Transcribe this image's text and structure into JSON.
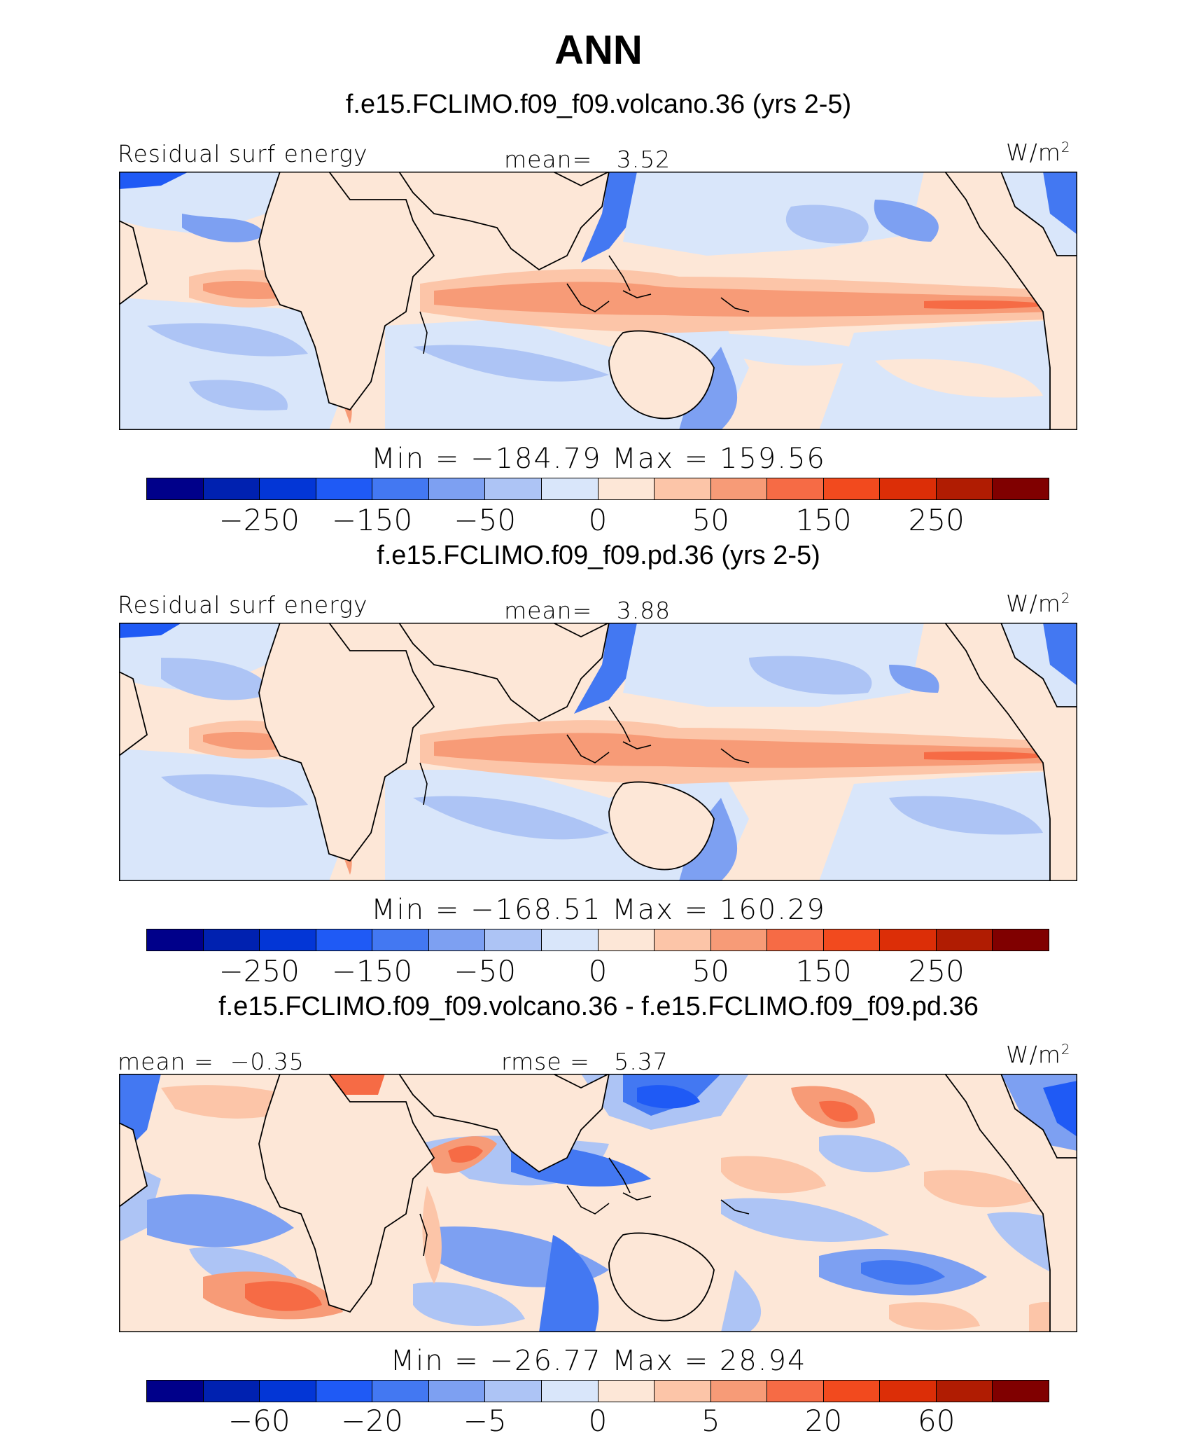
{
  "page": {
    "title": "ANN",
    "units": "W/m",
    "units_sup": "2"
  },
  "chart_data": [
    {
      "type": "heatmap",
      "title": "f.e15.FCLIMO.f09_f09.volcano.36 (yrs 2-5)",
      "left_label": "Residual surf energy",
      "center_label": "mean=   3.52",
      "mean": 3.52,
      "min": -184.79,
      "max": 159.56,
      "stats_text": "Min = −184.79 Max = 159.56",
      "colorbar_ticks": [
        "−250",
        "−150",
        "−50",
        "0",
        "50",
        "150",
        "250"
      ],
      "domain": "tropical band, Atlantic to Eastern Pacific"
    },
    {
      "type": "heatmap",
      "title": "f.e15.FCLIMO.f09_f09.pd.36 (yrs 2-5)",
      "left_label": "Residual surf energy",
      "center_label": "mean=   3.88",
      "mean": 3.88,
      "min": -168.51,
      "max": 160.29,
      "stats_text": "Min = −168.51 Max = 160.29",
      "colorbar_ticks": [
        "−250",
        "−150",
        "−50",
        "0",
        "50",
        "150",
        "250"
      ],
      "domain": "tropical band, Atlantic to Eastern Pacific"
    },
    {
      "type": "heatmap",
      "title": "f.e15.FCLIMO.f09_f09.volcano.36 - f.e15.FCLIMO.f09_f09.pd.36",
      "left_label": "mean =  −0.35",
      "center_label": "rmse =   5.37",
      "mean": -0.35,
      "rmse": 5.37,
      "min": -26.77,
      "max": 28.94,
      "stats_text": "Min = −26.77 Max =  28.94",
      "colorbar_ticks": [
        "−60",
        "−20",
        "−5",
        "0",
        "5",
        "20",
        "60"
      ],
      "domain": "tropical band, Atlantic to Eastern Pacific"
    }
  ],
  "colorbar_colors": [
    "#00008a",
    "#0021b0",
    "#0336d6",
    "#1f5af5",
    "#4378f2",
    "#7da0f2",
    "#adc4f5",
    "#d9e6fa",
    "#fde7d7",
    "#fcc5a8",
    "#f79b77",
    "#f66b45",
    "#f24a1e",
    "#dc2e07",
    "#b01c02",
    "#800000"
  ],
  "map_colors": {
    "zero_pos": "#fde7d7",
    "neg1": "#d9e6fa",
    "neg2": "#adc4f5",
    "neg3": "#7da0f2",
    "neg4": "#4378f2",
    "pos1": "#fcc5a8",
    "pos2": "#f79b77",
    "pos3": "#f66b45"
  }
}
